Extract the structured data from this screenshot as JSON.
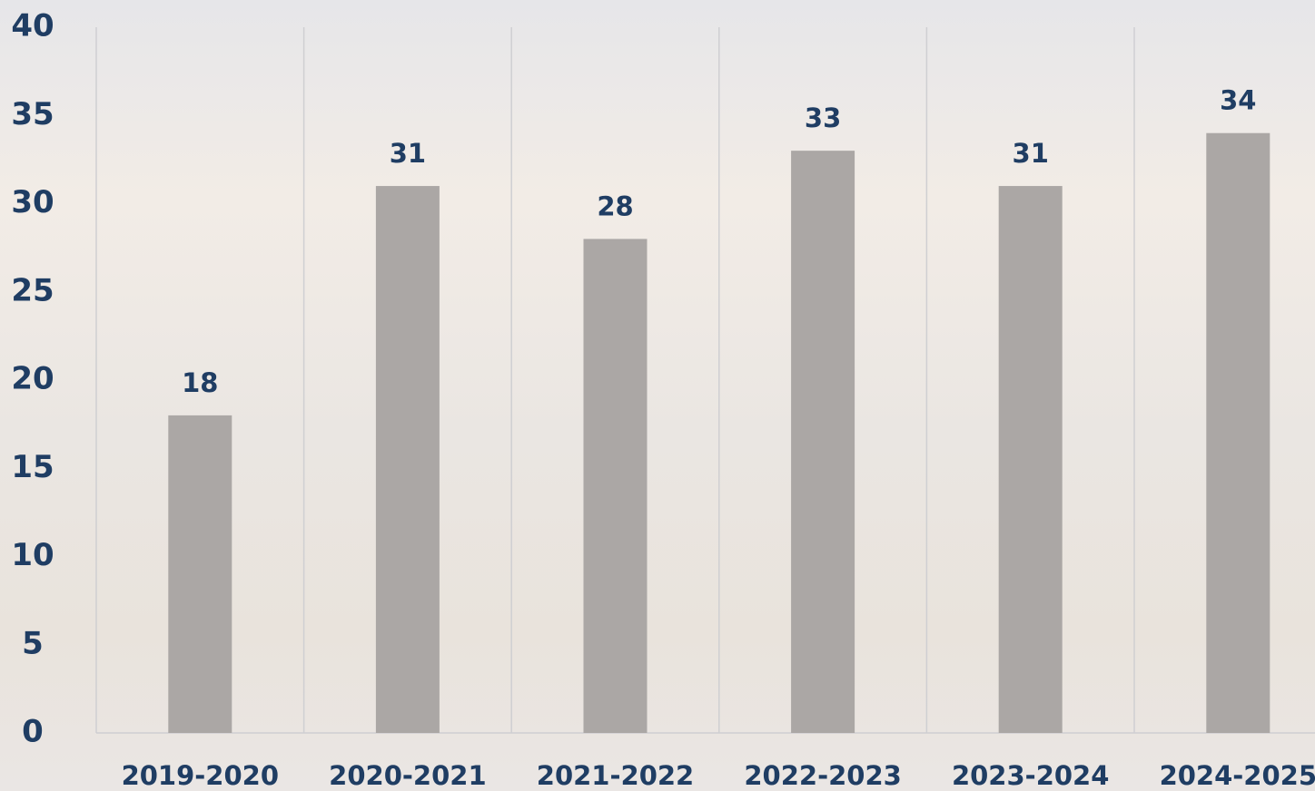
{
  "chart_data": {
    "type": "bar",
    "categories": [
      "2019-2020",
      "2020-2021",
      "2021-2022",
      "2022-2023",
      "2023-2024",
      "2024-2025"
    ],
    "values": [
      18,
      31,
      28,
      33,
      31,
      34
    ],
    "color": "#aba7a5",
    "ylim": [
      0,
      40
    ],
    "yticks": [
      0,
      5,
      10,
      15,
      20,
      25,
      30,
      35,
      40
    ]
  }
}
